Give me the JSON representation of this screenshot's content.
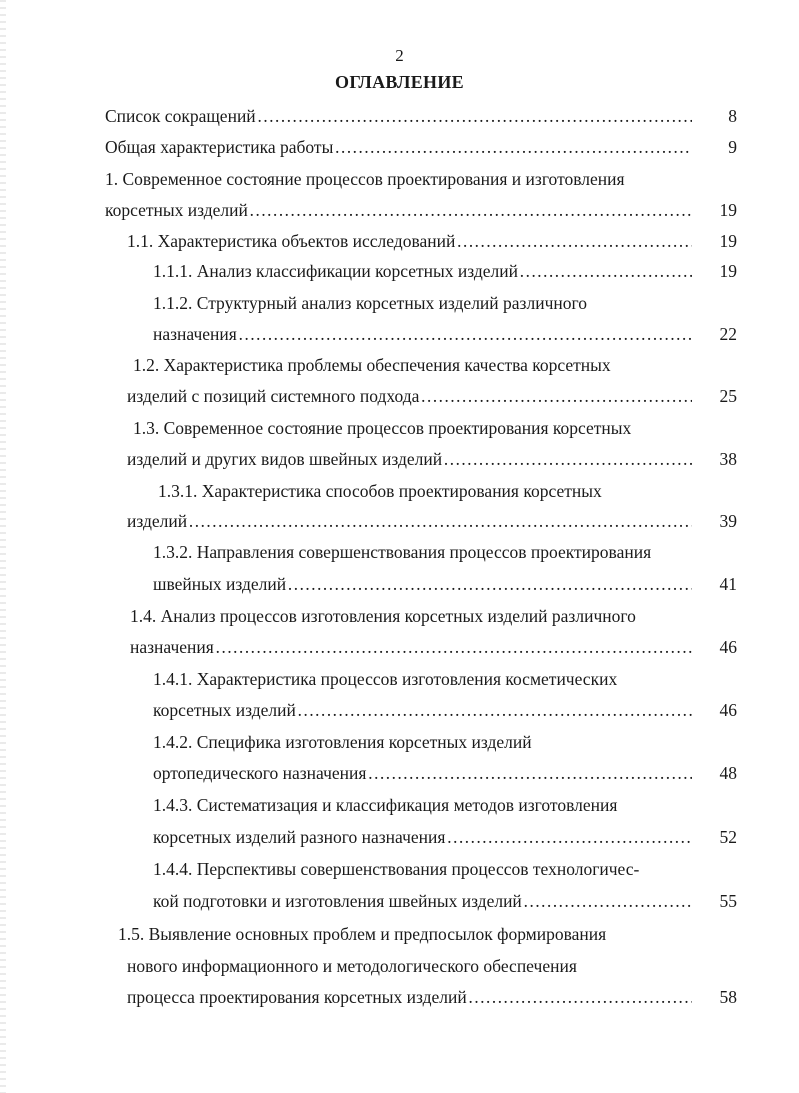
{
  "page_number": "2",
  "title": "ОГЛАВЛЕНИЕ",
  "entries": [
    {
      "lines": [
        "Список сокращений"
      ],
      "page": "8"
    },
    {
      "lines": [
        "Общая характеристика работы"
      ],
      "page": "9"
    },
    {
      "lines": [
        "1. Современное состояние процессов проектирования и изготовления",
        "корсетных изделий"
      ],
      "page": "19"
    },
    {
      "lines": [
        "1.1. Характеристика объектов исследований"
      ],
      "page": "19"
    },
    {
      "lines": [
        "1.1.1. Анализ классификации корсетных изделий"
      ],
      "page": "19"
    },
    {
      "lines": [
        "1.1.2. Структурный анализ корсетных изделий различного",
        "назначения"
      ],
      "page": "22"
    },
    {
      "lines": [
        "1.2. Характеристика проблемы обеспечения качества корсетных",
        "изделий с позиций системного подхода"
      ],
      "page": "25"
    },
    {
      "lines": [
        "1.3. Современное состояние процессов проектирования корсетных",
        "изделий и других видов швейных изделий"
      ],
      "page": "38"
    },
    {
      "lines": [
        "1.3.1. Характеристика способов проектирования корсетных",
        "изделий"
      ],
      "page": "39"
    },
    {
      "lines": [
        "1.3.2. Направления совершенствования процессов проектирования",
        "швейных изделий"
      ],
      "page": "41"
    },
    {
      "lines": [
        "1.4. Анализ процессов изготовления корсетных изделий различного",
        "назначения"
      ],
      "page": "46"
    },
    {
      "lines": [
        "1.4.1. Характеристика процессов изготовления косметических",
        "корсетных изделий"
      ],
      "page": "46"
    },
    {
      "lines": [
        "1.4.2. Специфика изготовления корсетных изделий",
        "ортопедического назначения"
      ],
      "page": "48"
    },
    {
      "lines": [
        "1.4.3. Систематизация и классификация методов изготовления",
        "корсетных изделий разного назначения"
      ],
      "page": "52"
    },
    {
      "lines": [
        "1.4.4. Перспективы совершенствования процессов технологичес-",
        "кой подготовки и изготовления швейных изделий"
      ],
      "page": "55"
    },
    {
      "lines": [
        "1.5. Выявление основных проблем и предпосылок формирования",
        "нового информационного и методологического обеспечения",
        "процесса проектирования корсетных изделий"
      ],
      "page": "58"
    }
  ]
}
